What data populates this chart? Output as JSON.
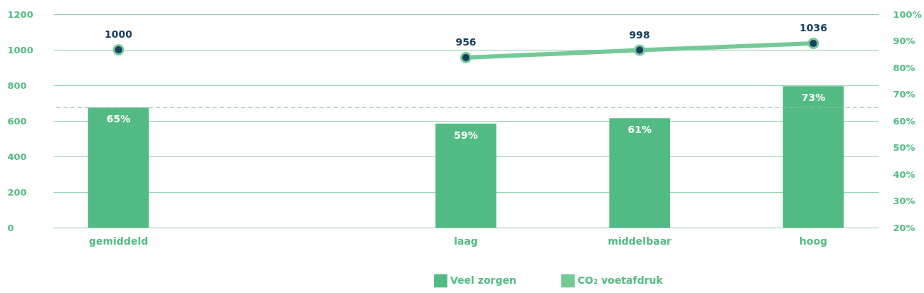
{
  "chart_data": {
    "type": "bar",
    "categories": [
      "gemiddeld",
      null,
      "laag",
      "middelbaar",
      "hoog"
    ],
    "series": [
      {
        "name": "Veel zorgen",
        "axis": "y2",
        "color": "#52bb83",
        "values": [
          65,
          null,
          59,
          61,
          73
        ],
        "value_labels": [
          "65%",
          null,
          "59%",
          "61%",
          "73%"
        ]
      },
      {
        "name": "CO₂ voetafdruk",
        "type": "line",
        "color": "#74c997",
        "values": [
          1000,
          null,
          956,
          998,
          1036
        ]
      }
    ],
    "ylim": [
      0,
      1200
    ],
    "yticks": [
      0,
      200,
      400,
      600,
      800,
      1000,
      1200
    ],
    "y2lim": [
      20,
      100
    ],
    "y2ticks": [
      {
        "value": 20,
        "label": "20%"
      },
      {
        "value": 30,
        "label": "30%"
      },
      {
        "value": 40,
        "label": "40%"
      },
      {
        "value": 50,
        "label": "50%"
      },
      {
        "value": 60,
        "label": "60%"
      },
      {
        "value": 70,
        "label": "70%"
      },
      {
        "value": 80,
        "label": "80%"
      },
      {
        "value": 90,
        "label": "90%"
      },
      {
        "value": 100,
        "label": "100%"
      }
    ],
    "data_labels": true,
    "ref_lines": [
      {
        "axis": "y2",
        "value": 65,
        "color": "#8fb8bb",
        "line_style": "dashed"
      }
    ],
    "grid": "y",
    "legend": "bottom",
    "marker": "circle",
    "line_style": "solid"
  }
}
